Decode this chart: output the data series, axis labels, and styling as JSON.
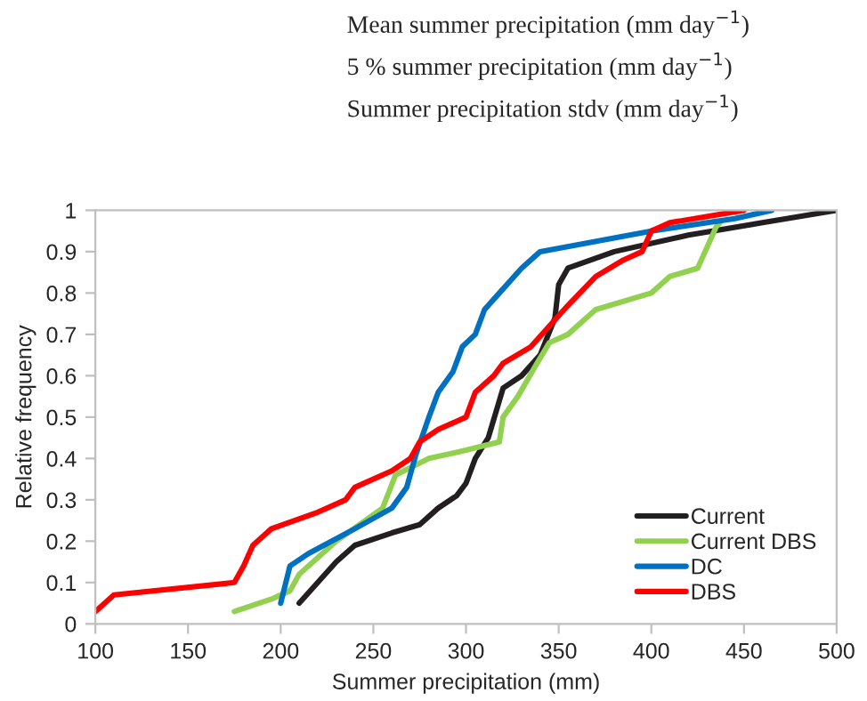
{
  "chart_data": {
    "type": "line",
    "xlabel": "Summer precipitation (mm)",
    "ylabel": "Relative frequency",
    "annotations": [
      "Mean summer precipitation (mm day$^{−1}$)",
      "5 % summer precipitation (mm day$^{−1}$)",
      "Summer precipitation stdv (mm day$^{−1}$)"
    ],
    "xlim": [
      100,
      500
    ],
    "xticks": [
      100,
      150,
      200,
      250,
      300,
      350,
      400,
      450,
      500
    ],
    "ylim": [
      0,
      1
    ],
    "yticks": [
      0,
      0.1,
      0.2,
      0.3,
      0.4,
      0.5,
      0.6,
      0.7,
      0.8,
      0.9,
      1
    ],
    "grid": false,
    "legend": "bottom right",
    "line_style": "solid",
    "marker": "none",
    "series": [
      {
        "name": "Current",
        "color": "#231f20",
        "x": [
          210,
          220,
          230,
          240,
          260,
          275,
          285,
          295,
          300,
          305,
          312,
          320,
          330,
          340,
          348,
          350,
          355,
          380,
          420,
          460,
          500
        ],
        "values": [
          0.05,
          0.1,
          0.15,
          0.19,
          0.22,
          0.24,
          0.28,
          0.31,
          0.34,
          0.4,
          0.45,
          0.57,
          0.6,
          0.65,
          0.74,
          0.82,
          0.86,
          0.9,
          0.94,
          0.97,
          1.0
        ]
      },
      {
        "name": "Current DBS",
        "color": "#92d050",
        "x": [
          175,
          195,
          205,
          210,
          230,
          255,
          262,
          280,
          300,
          318,
          320,
          328,
          337,
          345,
          355,
          370,
          400,
          410,
          425,
          435,
          437
        ],
        "values": [
          0.03,
          0.06,
          0.08,
          0.12,
          0.2,
          0.28,
          0.36,
          0.4,
          0.42,
          0.44,
          0.5,
          0.55,
          0.62,
          0.68,
          0.7,
          0.76,
          0.8,
          0.84,
          0.86,
          0.96,
          0.97
        ]
      },
      {
        "name": "DC",
        "color": "#0070c0",
        "x": [
          200,
          205,
          215,
          240,
          260,
          268,
          273,
          280,
          285,
          293,
          298,
          305,
          310,
          318,
          330,
          340,
          400,
          445,
          465
        ],
        "values": [
          0.05,
          0.14,
          0.17,
          0.23,
          0.28,
          0.33,
          0.41,
          0.5,
          0.56,
          0.61,
          0.67,
          0.7,
          0.76,
          0.8,
          0.86,
          0.9,
          0.95,
          0.98,
          1.0
        ]
      },
      {
        "name": "DBS",
        "color": "#ff0000",
        "x": [
          100,
          110,
          175,
          180,
          185,
          195,
          220,
          235,
          240,
          260,
          270,
          275,
          285,
          300,
          305,
          315,
          320,
          335,
          345,
          355,
          370,
          385,
          395,
          400,
          410,
          450
        ],
        "values": [
          0.03,
          0.07,
          0.1,
          0.14,
          0.19,
          0.23,
          0.27,
          0.3,
          0.33,
          0.37,
          0.4,
          0.44,
          0.47,
          0.5,
          0.56,
          0.6,
          0.63,
          0.67,
          0.72,
          0.77,
          0.84,
          0.88,
          0.9,
          0.95,
          0.97,
          1.0
        ]
      }
    ]
  }
}
